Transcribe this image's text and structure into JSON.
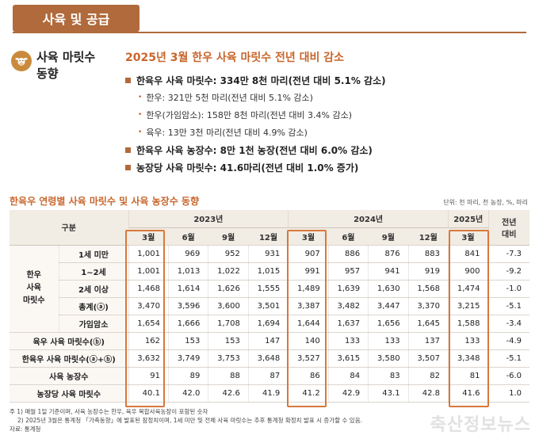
{
  "section": {
    "title": "사육 및 공급"
  },
  "subject": {
    "title_line1": "사육 마릿수",
    "title_line2": "동향"
  },
  "summary": {
    "headline": "2025년 3월 한우 사육 마릿수 전년 대비 감소",
    "items": [
      {
        "level": "main",
        "text": "한육우 사육 마릿수: 334만 8천 마리(전년 대비 5.1% 감소)"
      },
      {
        "level": "sub",
        "text": "한우: 321만 5천 마리(전년 대비 5.1% 감소)"
      },
      {
        "level": "sub",
        "text": "한우(가임암소): 158만 8천 마리(전년 대비 3.4% 감소)"
      },
      {
        "level": "sub",
        "text": "육우: 13만 3천 마리(전년 대비 4.9% 감소)"
      },
      {
        "level": "main",
        "text": "한육우 사육 농장수: 8만 1천 농장(전년 대비 6.0% 감소)"
      },
      {
        "level": "main",
        "text": "농장당 사육 마릿수: 41.6마리(전년 대비 1.0% 증가)"
      }
    ]
  },
  "table": {
    "title": "한육우 연령별 사육 마릿수 및 사육 농장수 동향",
    "unit": "단위: 천 마리, 천 농장, %, 마리",
    "header_division": "구분",
    "years": [
      "2023년",
      "2024년",
      "2025년"
    ],
    "months": [
      "3월",
      "6월",
      "9월",
      "12월",
      "3월",
      "6월",
      "9월",
      "12월",
      "3월"
    ],
    "yoy_header_line1": "전년",
    "yoy_header_line2": "대비",
    "group_label": {
      "l1": "한우",
      "l2": "사육",
      "l3": "마릿수"
    },
    "rows": [
      {
        "label": "1세 미만",
        "values": [
          "1,001",
          "969",
          "952",
          "931",
          "907",
          "886",
          "876",
          "883",
          "841"
        ],
        "yoy": "-7.3"
      },
      {
        "label": "1~2세",
        "values": [
          "1,001",
          "1,013",
          "1,022",
          "1,015",
          "991",
          "957",
          "941",
          "919",
          "900"
        ],
        "yoy": "-9.2"
      },
      {
        "label": "2세 이상",
        "values": [
          "1,468",
          "1,614",
          "1,626",
          "1,555",
          "1,489",
          "1,639",
          "1,630",
          "1,568",
          "1,474"
        ],
        "yoy": "-1.0"
      },
      {
        "label": "총계(ⓐ)",
        "values": [
          "3,470",
          "3,596",
          "3,600",
          "3,501",
          "3,387",
          "3,482",
          "3,447",
          "3,370",
          "3,215"
        ],
        "yoy": "-5.1"
      },
      {
        "label": "가임암소",
        "values": [
          "1,654",
          "1,666",
          "1,708",
          "1,694",
          "1,644",
          "1,637",
          "1,656",
          "1,645",
          "1,588"
        ],
        "yoy": "-3.4"
      },
      {
        "label": "육우 사육 마릿수(ⓑ)",
        "values": [
          "162",
          "153",
          "153",
          "147",
          "140",
          "133",
          "133",
          "137",
          "133"
        ],
        "yoy": "-4.9"
      },
      {
        "label": "한육우 사육 마릿수(ⓐ+ⓑ)",
        "values": [
          "3,632",
          "3,749",
          "3,753",
          "3,648",
          "3,527",
          "3,615",
          "3,580",
          "3,507",
          "3,348"
        ],
        "yoy": "-5.1"
      },
      {
        "label": "사육 농장수",
        "values": [
          "91",
          "89",
          "88",
          "87",
          "86",
          "84",
          "83",
          "82",
          "81"
        ],
        "yoy": "-6.0"
      },
      {
        "label": "농장당 사육 마릿수",
        "values": [
          "40.1",
          "42.0",
          "42.6",
          "41.9",
          "41.2",
          "42.9",
          "43.1",
          "42.8",
          "41.6"
        ],
        "yoy": "1.0"
      }
    ]
  },
  "footnotes": [
    "주 1) 매월 1일 기준이며, 사육 농장수는 한우, 육우 복합사육농장이 포함된 숫자",
    "2) 2025년 3월은 통계청 「가축동향」에 발표된 잠정치이며, 1세 미만 및 전체 사육 마릿수는 추후 통계청 확정치 발표 시 증가할 수 있음.",
    "자료: 통계청"
  ],
  "watermark": "축산정보뉴스",
  "colors": {
    "accent": "#b06a3b",
    "highlight": "#d9783b",
    "headline": "#c8652b"
  }
}
